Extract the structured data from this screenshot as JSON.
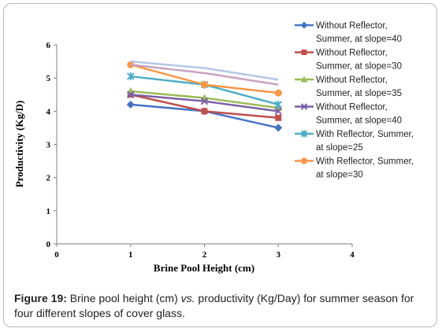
{
  "chart_data": {
    "type": "line",
    "title": "",
    "xlabel": "Brine Pool Height (cm)",
    "ylabel": "Productivity  (Kg/D)",
    "xlim": [
      0,
      4
    ],
    "ylim": [
      0,
      6
    ],
    "x_ticks": [
      "0",
      "1",
      "2",
      "3",
      "4"
    ],
    "y_ticks": [
      "0",
      "1",
      "2",
      "3",
      "4",
      "5",
      "6"
    ],
    "grid": false,
    "legend_position": "right",
    "series": [
      {
        "name": "Without Reflector, Summer, at slope=40",
        "legend_lines": [
          "Without Reflector,",
          "Summer, at slope=40"
        ],
        "color": "#4472c4",
        "marker": "diamond",
        "x": [
          1,
          2,
          3
        ],
        "y": [
          4.2,
          4.0,
          3.5
        ]
      },
      {
        "name": "Without Reflector, Summer, at slope=30",
        "legend_lines": [
          "Without Reflector,",
          "Summer, at slope=30"
        ],
        "color": "#c0504d",
        "marker": "square",
        "x": [
          1,
          2,
          3
        ],
        "y": [
          4.5,
          4.0,
          3.8
        ]
      },
      {
        "name": "Without Reflector, Summer, at slope=35",
        "legend_lines": [
          "Without Reflector,",
          "Summer, at slope=35"
        ],
        "color": "#9bbb59",
        "marker": "triangle",
        "x": [
          1,
          2,
          3
        ],
        "y": [
          4.6,
          4.4,
          4.1
        ]
      },
      {
        "name": "Without Reflector, Summer, at slope=40",
        "legend_lines": [
          "Without Reflector,",
          "Summer, at slope=40"
        ],
        "color": "#7d5fa5",
        "marker": "x",
        "x": [
          1,
          2,
          3
        ],
        "y": [
          4.5,
          4.3,
          4.0
        ]
      },
      {
        "name": "With Reflector, Summer, at slope=25",
        "legend_lines": [
          "With Reflector, Summer,",
          "at slope=25"
        ],
        "color": "#4bacc6",
        "marker": "asterisk",
        "x": [
          1,
          2,
          3
        ],
        "y": [
          5.05,
          4.8,
          4.2
        ]
      },
      {
        "name": "With Reflector, Summer, at slope=30",
        "legend_lines": [
          "With Reflector, Summer,",
          "at slope=30"
        ],
        "color": "#f79646",
        "marker": "circle",
        "x": [
          1,
          2,
          3
        ],
        "y": [
          5.4,
          4.8,
          4.55
        ]
      },
      {
        "name": "",
        "legend_lines": [],
        "color": "#c9a3bf",
        "marker": "none",
        "x": [
          1,
          2,
          3
        ],
        "y": [
          5.4,
          5.15,
          4.8
        ]
      },
      {
        "name": "",
        "legend_lines": [],
        "color": "#b4c7e7",
        "marker": "none",
        "x": [
          1,
          2,
          3
        ],
        "y": [
          5.5,
          5.3,
          4.95
        ]
      }
    ]
  },
  "caption": {
    "label": "Figure 19:",
    "text_before_vs": " Brine pool height (cm) ",
    "vs": "vs.",
    "text_after_vs": " productivity (Kg/Day) for summer season for four different slopes of cover glass."
  }
}
